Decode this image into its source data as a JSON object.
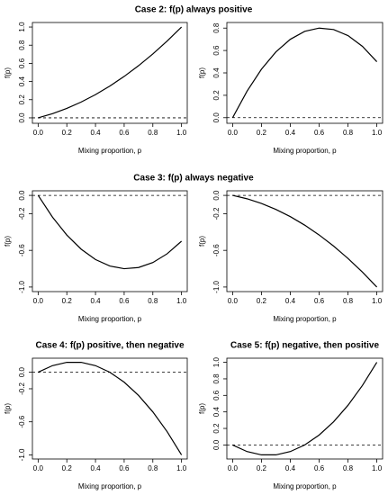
{
  "chart_data": [
    {
      "type": "line",
      "title": "Case 2: f(p) always positive",
      "xlabel": "Mixing proportion, p",
      "ylabel": "f(p)",
      "x": [
        0,
        0.1,
        0.2,
        0.3,
        0.4,
        0.5,
        0.6,
        0.7,
        0.8,
        0.9,
        1.0
      ],
      "series": [
        {
          "color": "#000000",
          "values": [
            0,
            0.046,
            0.104,
            0.174,
            0.256,
            0.35,
            0.456,
            0.574,
            0.704,
            0.846,
            1.0
          ]
        }
      ],
      "hline": 0,
      "xlim": [
        -0.04,
        1.04
      ],
      "ylim": [
        -0.06,
        1.05
      ],
      "xticks": [
        {
          "value": 0,
          "label": "0.0"
        },
        {
          "value": 0.2,
          "label": "0.2"
        },
        {
          "value": 0.4,
          "label": "0.4"
        },
        {
          "value": 0.6,
          "label": "0.6"
        },
        {
          "value": 0.8,
          "label": "0.8"
        },
        {
          "value": 1,
          "label": "1.0"
        }
      ],
      "yticks": [
        {
          "value": 0,
          "label": "0.0"
        },
        {
          "value": 0.2,
          "label": "0.2"
        },
        {
          "value": 0.4,
          "label": "0.4"
        },
        {
          "value": 0.6,
          "label": "0.6"
        },
        {
          "value": 0.8,
          "label": "0.8"
        },
        {
          "value": 1,
          "label": "1.0"
        }
      ]
    },
    {
      "type": "line",
      "xlabel": "Mixing proportion, p",
      "ylabel": "f(p)",
      "x": [
        0,
        0.1,
        0.2,
        0.3,
        0.4,
        0.5,
        0.6,
        0.7,
        0.8,
        0.9,
        1.0
      ],
      "series": [
        {
          "color": "#000000",
          "values": [
            0,
            0.237,
            0.433,
            0.587,
            0.7,
            0.771,
            0.8,
            0.787,
            0.733,
            0.637,
            0.5
          ]
        }
      ],
      "hline": 0,
      "xlim": [
        -0.04,
        1.04
      ],
      "ylim": [
        -0.05,
        0.85
      ],
      "xticks": [
        {
          "value": 0,
          "label": "0.0"
        },
        {
          "value": 0.2,
          "label": "0.2"
        },
        {
          "value": 0.4,
          "label": "0.4"
        },
        {
          "value": 0.6,
          "label": "0.6"
        },
        {
          "value": 0.8,
          "label": "0.8"
        },
        {
          "value": 1,
          "label": "1.0"
        }
      ],
      "yticks": [
        {
          "value": 0,
          "label": "0.0"
        },
        {
          "value": 0.2,
          "label": "0.2"
        },
        {
          "value": 0.4,
          "label": "0.4"
        },
        {
          "value": 0.6,
          "label": "0.6"
        },
        {
          "value": 0.8,
          "label": "0.8"
        }
      ]
    },
    {
      "type": "line",
      "title": "Case 3: f(p) always negative",
      "xlabel": "Mixing proportion, p",
      "ylabel": "f(p)",
      "x": [
        0,
        0.1,
        0.2,
        0.3,
        0.4,
        0.5,
        0.6,
        0.7,
        0.8,
        0.9,
        1.0
      ],
      "series": [
        {
          "color": "#000000",
          "values": [
            0,
            -0.237,
            -0.433,
            -0.587,
            -0.7,
            -0.771,
            -0.8,
            -0.787,
            -0.733,
            -0.637,
            -0.5
          ]
        }
      ],
      "hline": 0,
      "xlim": [
        -0.04,
        1.04
      ],
      "ylim": [
        -1.05,
        0.05
      ],
      "xticks": [
        {
          "value": 0,
          "label": "0.0"
        },
        {
          "value": 0.2,
          "label": "0.2"
        },
        {
          "value": 0.4,
          "label": "0.4"
        },
        {
          "value": 0.6,
          "label": "0.6"
        },
        {
          "value": 0.8,
          "label": "0.8"
        },
        {
          "value": 1,
          "label": "1.0"
        }
      ],
      "yticks": [
        {
          "value": 0,
          "label": "0.0"
        },
        {
          "value": -0.2,
          "label": "-0.2"
        },
        {
          "value": -0.6,
          "label": "-0.6"
        },
        {
          "value": -1,
          "label": "-1.0"
        }
      ]
    },
    {
      "type": "line",
      "xlabel": "Mixing proportion, p",
      "ylabel": "f(p)",
      "x": [
        0,
        0.1,
        0.2,
        0.3,
        0.4,
        0.5,
        0.6,
        0.7,
        0.8,
        0.9,
        1.0
      ],
      "series": [
        {
          "color": "#000000",
          "values": [
            0,
            -0.037,
            -0.088,
            -0.153,
            -0.232,
            -0.325,
            -0.432,
            -0.553,
            -0.688,
            -0.837,
            -1.0
          ]
        }
      ],
      "hline": 0,
      "xlim": [
        -0.04,
        1.04
      ],
      "ylim": [
        -1.05,
        0.05
      ],
      "xticks": [
        {
          "value": 0,
          "label": "0.0"
        },
        {
          "value": 0.2,
          "label": "0.2"
        },
        {
          "value": 0.4,
          "label": "0.4"
        },
        {
          "value": 0.6,
          "label": "0.6"
        },
        {
          "value": 0.8,
          "label": "0.8"
        },
        {
          "value": 1,
          "label": "1.0"
        }
      ],
      "yticks": [
        {
          "value": 0,
          "label": "0.0"
        },
        {
          "value": -0.2,
          "label": "-0.2"
        },
        {
          "value": -0.6,
          "label": "-0.6"
        },
        {
          "value": -1,
          "label": "-1.0"
        }
      ]
    },
    {
      "type": "line",
      "title": "Case 4: f(p) positive, then negative",
      "xlabel": "Mixing proportion, p",
      "ylabel": "f(p)",
      "x": [
        0,
        0.1,
        0.2,
        0.3,
        0.4,
        0.5,
        0.6,
        0.7,
        0.8,
        0.9,
        1.0
      ],
      "series": [
        {
          "color": "#000000",
          "values": [
            0,
            0.08,
            0.12,
            0.12,
            0.08,
            0,
            -0.12,
            -0.28,
            -0.48,
            -0.72,
            -1.0
          ]
        }
      ],
      "hline": 0,
      "xlim": [
        -0.04,
        1.04
      ],
      "ylim": [
        -1.05,
        0.17
      ],
      "xticks": [
        {
          "value": 0,
          "label": "0.0"
        },
        {
          "value": 0.2,
          "label": "0.2"
        },
        {
          "value": 0.4,
          "label": "0.4"
        },
        {
          "value": 0.6,
          "label": "0.6"
        },
        {
          "value": 0.8,
          "label": "0.8"
        },
        {
          "value": 1,
          "label": "1.0"
        }
      ],
      "yticks": [
        {
          "value": 0,
          "label": "0.0"
        },
        {
          "value": -0.2,
          "label": "-0.2"
        },
        {
          "value": -0.6,
          "label": "-0.6"
        },
        {
          "value": -1,
          "label": "-1.0"
        }
      ]
    },
    {
      "type": "line",
      "title": "Case 5: f(p) negative, then positive",
      "xlabel": "Mixing proportion, p",
      "ylabel": "f(p)",
      "x": [
        0,
        0.1,
        0.2,
        0.3,
        0.4,
        0.5,
        0.6,
        0.7,
        0.8,
        0.9,
        1.0
      ],
      "series": [
        {
          "color": "#000000",
          "values": [
            0,
            -0.08,
            -0.12,
            -0.12,
            -0.08,
            0,
            0.12,
            0.28,
            0.48,
            0.72,
            1.0
          ]
        }
      ],
      "hline": 0,
      "xlim": [
        -0.04,
        1.04
      ],
      "ylim": [
        -0.17,
        1.05
      ],
      "xticks": [
        {
          "value": 0,
          "label": "0.0"
        },
        {
          "value": 0.2,
          "label": "0.2"
        },
        {
          "value": 0.4,
          "label": "0.4"
        },
        {
          "value": 0.6,
          "label": "0.6"
        },
        {
          "value": 0.8,
          "label": "0.8"
        },
        {
          "value": 1,
          "label": "1.0"
        }
      ],
      "yticks": [
        {
          "value": 0,
          "label": "0.0"
        },
        {
          "value": 0.2,
          "label": "0.2"
        },
        {
          "value": 0.4,
          "label": "0.4"
        },
        {
          "value": 0.6,
          "label": "0.6"
        },
        {
          "value": 0.8,
          "label": "0.8"
        },
        {
          "value": 1,
          "label": "1.0"
        }
      ]
    }
  ]
}
